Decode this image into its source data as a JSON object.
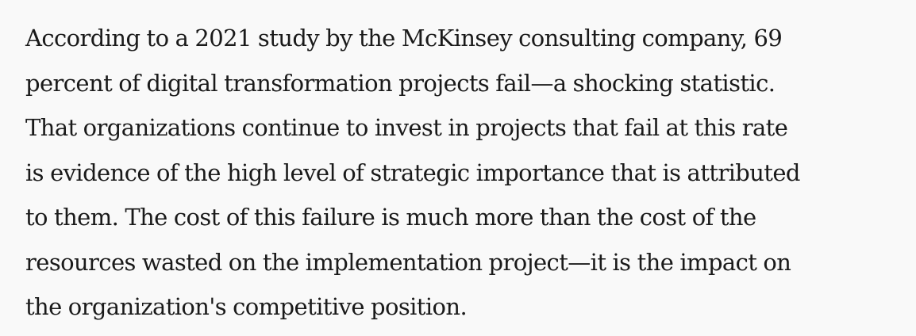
{
  "article": {
    "lines": [
      "According to a 2021 study by the McKinsey consulting company, 69",
      "percent of digital transformation projects fail—a shocking statistic.",
      "That organizations continue to invest in projects that fail at this rate",
      "is evidence of the high level of strategic importance that is attributed",
      "to them. The cost of this failure is much more than the cost of the",
      "resources wasted on the implementation project—it is the impact on",
      "the organization's competitive position."
    ]
  }
}
